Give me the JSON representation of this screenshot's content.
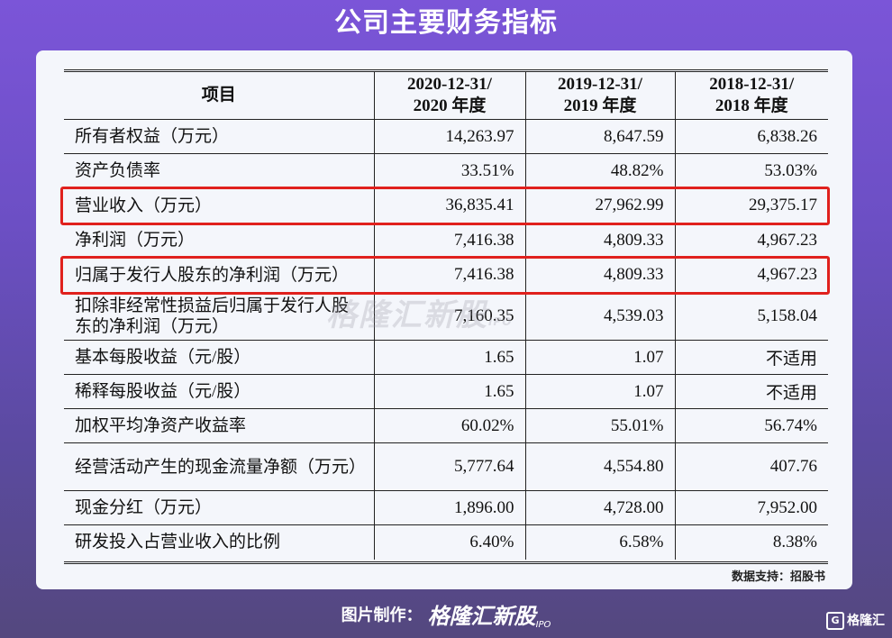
{
  "title": "公司主要财务指标",
  "table": {
    "headers": [
      {
        "line1": "项目",
        "line2": ""
      },
      {
        "line1": "2020-12-31/",
        "line2": "2020 年度"
      },
      {
        "line1": "2019-12-31/",
        "line2": "2019 年度"
      },
      {
        "line1": "2018-12-31/",
        "line2": "2018 年度"
      }
    ],
    "rows": [
      {
        "label": "所有者权益（万元）",
        "values": [
          "14,263.97",
          "8,647.59",
          "6,838.26"
        ]
      },
      {
        "label": "资产负债率",
        "values": [
          "33.51%",
          "48.82%",
          "53.03%"
        ]
      },
      {
        "label": "营业收入（万元）",
        "values": [
          "36,835.41",
          "27,962.99",
          "29,375.17"
        ]
      },
      {
        "label": "净利润（万元）",
        "values": [
          "7,416.38",
          "4,809.33",
          "4,967.23"
        ]
      },
      {
        "label": "归属于发行人股东的净利润（万元）",
        "values": [
          "7,416.38",
          "4,809.33",
          "4,967.23"
        ]
      },
      {
        "label": "扣除非经常性损益后归属于发行人股东的净利润（万元）",
        "values": [
          "7,160.35",
          "4,539.03",
          "5,158.04"
        ]
      },
      {
        "label": "基本每股收益（元/股）",
        "values": [
          "1.65",
          "1.07",
          "不适用"
        ]
      },
      {
        "label": "稀释每股收益（元/股）",
        "values": [
          "1.65",
          "1.07",
          "不适用"
        ]
      },
      {
        "label": "加权平均净资产收益率",
        "values": [
          "60.02%",
          "55.01%",
          "56.74%"
        ]
      },
      {
        "label": "经营活动产生的现金流量净额（万元）",
        "values": [
          "5,777.64",
          "4,554.80",
          "407.76"
        ]
      },
      {
        "label": "现金分红（万元）",
        "values": [
          "1,896.00",
          "4,728.00",
          "7,952.00"
        ]
      },
      {
        "label": "研发投入占营业收入的比例",
        "values": [
          "6.40%",
          "6.58%",
          "8.38%"
        ]
      }
    ]
  },
  "watermark": {
    "text": "格隆汇新股",
    "suffix": "IPO"
  },
  "source": "数据支持：招股书",
  "footer": {
    "maker": "图片制作：",
    "brand": "格隆汇新股",
    "suffix": "IPO"
  },
  "corner_logo": "格隆汇",
  "colors": {
    "highlight": "#e0211d",
    "background_top": "#7b55d8",
    "card": "#f4f6fb"
  }
}
